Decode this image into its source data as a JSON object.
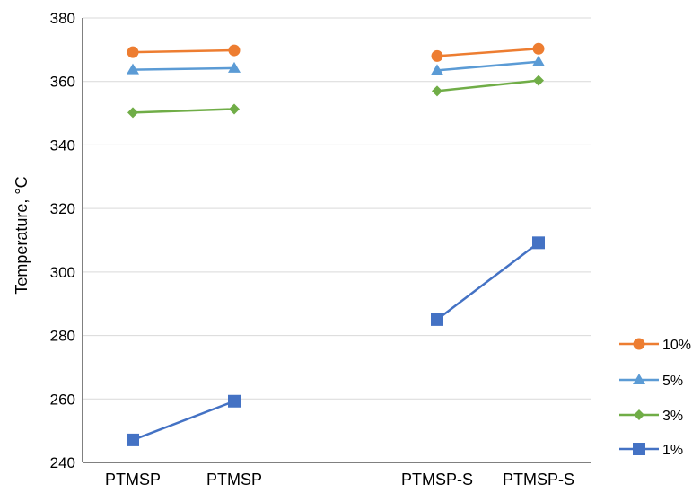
{
  "chart_data": {
    "type": "line",
    "ylabel": "Temperature, °C",
    "ylim": [
      240,
      380
    ],
    "yticks": [
      240,
      260,
      280,
      300,
      320,
      340,
      360,
      380
    ],
    "grid": "horizontal",
    "legend_position": "right",
    "categories": [
      "PTMSP",
      "PTMSP",
      "PTMSP-S",
      "PTMSP-S"
    ],
    "series": [
      {
        "name": "10%",
        "color": "#ED7D31",
        "marker": "circle",
        "segments": [
          {
            "categories": [
              0,
              1
            ],
            "values": [
              369.2,
              369.8
            ]
          },
          {
            "categories": [
              2,
              3
            ],
            "values": [
              368.0,
              370.3
            ]
          }
        ]
      },
      {
        "name": "5%",
        "color": "#5B9BD5",
        "marker": "triangle",
        "segments": [
          {
            "categories": [
              0,
              1
            ],
            "values": [
              363.7,
              364.2
            ]
          },
          {
            "categories": [
              2,
              3
            ],
            "values": [
              363.5,
              366.2
            ]
          }
        ]
      },
      {
        "name": "3%",
        "color": "#70AD47",
        "marker": "diamond",
        "segments": [
          {
            "categories": [
              0,
              1
            ],
            "values": [
              350.2,
              351.3
            ]
          },
          {
            "categories": [
              2,
              3
            ],
            "values": [
              357.0,
              360.3
            ]
          }
        ]
      },
      {
        "name": "1%",
        "color": "#4472C4",
        "marker": "square",
        "segments": [
          {
            "categories": [
              0,
              1
            ],
            "values": [
              247.1,
              259.3
            ]
          },
          {
            "categories": [
              2,
              3
            ],
            "values": [
              285.0,
              309.2
            ]
          }
        ]
      }
    ]
  }
}
